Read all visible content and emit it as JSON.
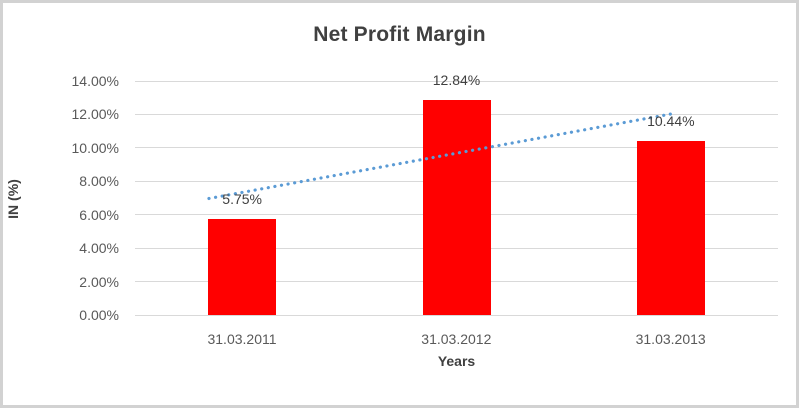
{
  "chart_data": {
    "type": "bar",
    "title": "Net Profit Margin",
    "categories": [
      "31.03.2011",
      "31.03.2012",
      "31.03.2013"
    ],
    "values": [
      5.75,
      12.84,
      10.44
    ],
    "data_labels": [
      "5.75%",
      "12.84%",
      "10.44%"
    ],
    "xlabel": "Years",
    "ylabel": "IN (%)",
    "ylim": [
      0,
      14
    ],
    "ytick_step": 2,
    "ytick_labels": [
      "0.00%",
      "2.00%",
      "4.00%",
      "6.00%",
      "8.00%",
      "10.00%",
      "12.00%",
      "14.00%"
    ],
    "grid": true,
    "legend": "none",
    "bar_color": "#ff0000",
    "trendline": {
      "type": "linear",
      "style": "dotted",
      "color": "#5b9bd5",
      "x1_frac": 0.115,
      "y1_value": 6.97,
      "x2_frac": 0.837,
      "y2_value": 12.05
    }
  },
  "colors": {
    "background": "#ffffff",
    "border": "#d2d2d2",
    "gridline": "#d9d9d9",
    "axis_text": "#595959",
    "title_text": "#404040",
    "bar": "#ff0000",
    "trendline": "#5b9bd5"
  }
}
